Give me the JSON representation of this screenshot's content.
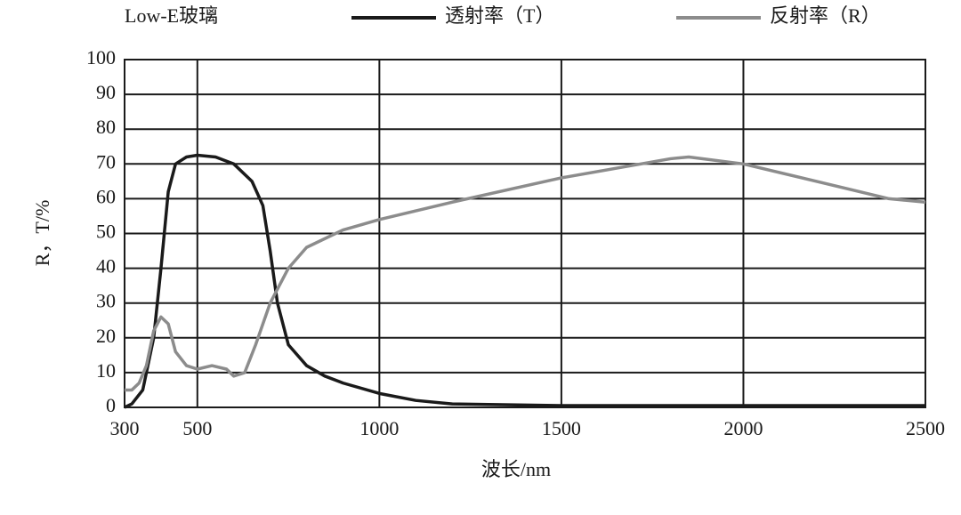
{
  "chart_data": {
    "type": "line",
    "title": "Low-E玻璃",
    "x_label": "波长/nm",
    "y_label": "R，T/%",
    "xlim": [
      300,
      2500
    ],
    "xticks": [
      300,
      500,
      1000,
      1500,
      2000,
      2500
    ],
    "ylim": [
      0,
      100
    ],
    "yticks": [
      0,
      10,
      20,
      30,
      40,
      50,
      60,
      70,
      80,
      90,
      100
    ],
    "grid": true,
    "legend": "top",
    "series": [
      {
        "name": "透射率（T）",
        "color": "#1a1a1a",
        "x": [
          300,
          320,
          350,
          380,
          400,
          420,
          440,
          470,
          500,
          550,
          600,
          650,
          680,
          700,
          720,
          750,
          800,
          850,
          900,
          1000,
          1100,
          1200,
          1500,
          2000,
          2500
        ],
        "values": [
          0,
          1,
          5,
          20,
          40,
          62,
          70,
          72,
          72.5,
          72,
          70,
          65,
          58,
          45,
          30,
          18,
          12,
          9,
          7,
          4,
          2,
          1,
          0.5,
          0.5,
          0.5
        ]
      },
      {
        "name": "反射率（R）",
        "color": "#8c8c8c",
        "x": [
          300,
          320,
          340,
          360,
          380,
          400,
          420,
          440,
          470,
          500,
          540,
          580,
          600,
          630,
          660,
          700,
          750,
          800,
          900,
          1000,
          1200,
          1500,
          1800,
          1850,
          2000,
          2200,
          2400,
          2500
        ],
        "values": [
          5,
          5,
          7,
          12,
          22,
          26,
          24,
          16,
          12,
          11,
          12,
          11,
          9,
          10,
          18,
          30,
          40,
          46,
          51,
          54,
          59,
          66,
          71.5,
          72,
          70,
          65,
          60,
          59
        ]
      }
    ]
  }
}
